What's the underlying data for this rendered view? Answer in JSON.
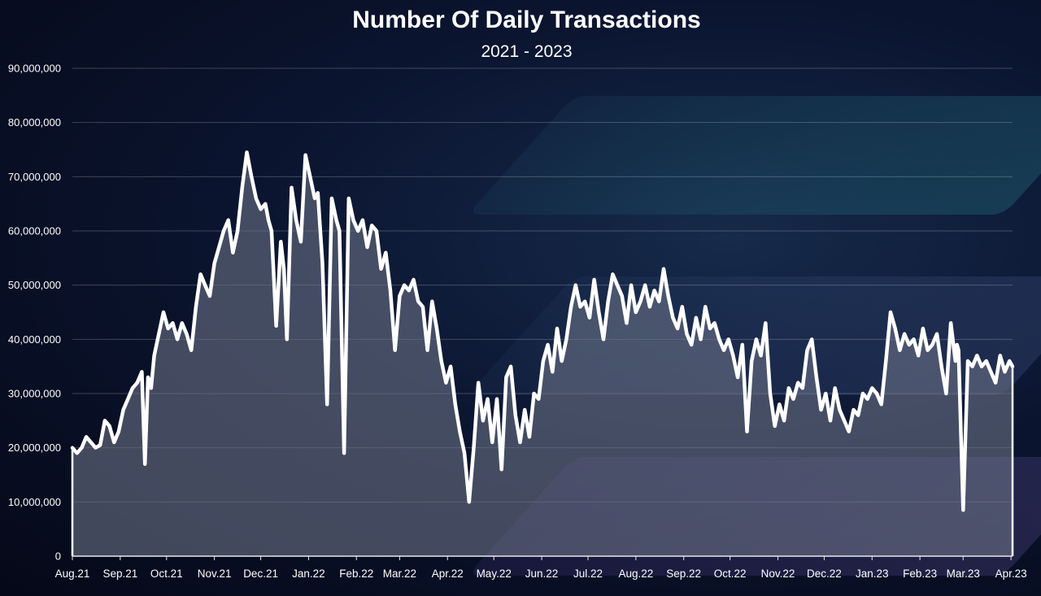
{
  "chart_data": {
    "type": "area",
    "title": "Number Of Daily Transactions",
    "subtitle": "2021 - 2023",
    "xlabel": "",
    "ylabel": "",
    "ylim": [
      0,
      90000000
    ],
    "grid": true,
    "y_ticks": [
      0,
      10000000,
      20000000,
      30000000,
      40000000,
      50000000,
      60000000,
      70000000,
      80000000,
      90000000
    ],
    "y_tick_labels": [
      "0",
      "10,000,000",
      "20,000,000",
      "30,000,000",
      "40,000,000",
      "50,000,000",
      "60,000,000",
      "70,000,000",
      "80,000,000",
      "90,000,000"
    ],
    "x_tick_labels": [
      "Aug.21",
      "Sep.21",
      "Oct.21",
      "Nov.21",
      "Dec.21",
      "Jan.22",
      "Feb.22",
      "Mar.22",
      "Apr.22",
      "May.22",
      "Jun.22",
      "Jul.22",
      "Aug.22",
      "Sep.22",
      "Oct.22",
      "Nov.22",
      "Dec.22",
      "Jan.23",
      "Feb.23",
      "Mar.23",
      "Apr.23"
    ],
    "series": [
      {
        "color": "#ffffff",
        "fill": "#6b7186",
        "x": [
          "2021-08-01",
          "2021-08-04",
          "2021-08-07",
          "2021-08-10",
          "2021-08-13",
          "2021-08-16",
          "2021-08-19",
          "2021-08-22",
          "2021-08-25",
          "2021-08-28",
          "2021-08-31",
          "2021-09-03",
          "2021-09-06",
          "2021-09-09",
          "2021-09-12",
          "2021-09-15",
          "2021-09-17",
          "2021-09-19",
          "2021-09-21",
          "2021-09-23",
          "2021-09-26",
          "2021-09-29",
          "2021-10-02",
          "2021-10-05",
          "2021-10-08",
          "2021-10-11",
          "2021-10-14",
          "2021-10-17",
          "2021-10-20",
          "2021-10-23",
          "2021-10-26",
          "2021-10-29",
          "2021-11-01",
          "2021-11-04",
          "2021-11-07",
          "2021-11-10",
          "2021-11-13",
          "2021-11-16",
          "2021-11-19",
          "2021-11-22",
          "2021-11-25",
          "2021-11-28",
          "2021-12-01",
          "2021-12-04",
          "2021-12-06",
          "2021-12-08",
          "2021-12-11",
          "2021-12-14",
          "2021-12-16",
          "2021-12-18",
          "2021-12-21",
          "2021-12-24",
          "2021-12-27",
          "2021-12-30",
          "2022-01-02",
          "2022-01-05",
          "2022-01-07",
          "2022-01-10",
          "2022-01-13",
          "2022-01-16",
          "2022-01-19",
          "2022-01-21",
          "2022-01-24",
          "2022-01-27",
          "2022-01-30",
          "2022-02-02",
          "2022-02-05",
          "2022-02-08",
          "2022-02-11",
          "2022-02-14",
          "2022-02-17",
          "2022-02-20",
          "2022-02-23",
          "2022-02-26",
          "2022-03-01",
          "2022-03-04",
          "2022-03-07",
          "2022-03-10",
          "2022-03-13",
          "2022-03-16",
          "2022-03-19",
          "2022-03-22",
          "2022-03-25",
          "2022-03-28",
          "2022-03-31",
          "2022-04-03",
          "2022-04-06",
          "2022-04-09",
          "2022-04-12",
          "2022-04-15",
          "2022-04-18",
          "2022-04-21",
          "2022-04-24",
          "2022-04-27",
          "2022-04-30",
          "2022-05-03",
          "2022-05-06",
          "2022-05-09",
          "2022-05-12",
          "2022-05-15",
          "2022-05-18",
          "2022-05-21",
          "2022-05-24",
          "2022-05-27",
          "2022-05-30",
          "2022-06-02",
          "2022-06-05",
          "2022-06-08",
          "2022-06-11",
          "2022-06-14",
          "2022-06-17",
          "2022-06-20",
          "2022-06-23",
          "2022-06-26",
          "2022-06-29",
          "2022-07-02",
          "2022-07-05",
          "2022-07-08",
          "2022-07-11",
          "2022-07-14",
          "2022-07-17",
          "2022-07-20",
          "2022-07-23",
          "2022-07-26",
          "2022-07-29",
          "2022-08-01",
          "2022-08-04",
          "2022-08-07",
          "2022-08-10",
          "2022-08-13",
          "2022-08-16",
          "2022-08-19",
          "2022-08-22",
          "2022-08-25",
          "2022-08-28",
          "2022-08-31",
          "2022-09-03",
          "2022-09-06",
          "2022-09-09",
          "2022-09-12",
          "2022-09-15",
          "2022-09-18",
          "2022-09-21",
          "2022-09-24",
          "2022-09-27",
          "2022-09-30",
          "2022-10-03",
          "2022-10-06",
          "2022-10-09",
          "2022-10-12",
          "2022-10-15",
          "2022-10-18",
          "2022-10-21",
          "2022-10-24",
          "2022-10-27",
          "2022-10-30",
          "2022-11-02",
          "2022-11-05",
          "2022-11-08",
          "2022-11-11",
          "2022-11-14",
          "2022-11-17",
          "2022-11-20",
          "2022-11-23",
          "2022-11-26",
          "2022-11-29",
          "2022-12-02",
          "2022-12-05",
          "2022-12-08",
          "2022-12-11",
          "2022-12-14",
          "2022-12-17",
          "2022-12-20",
          "2022-12-23",
          "2022-12-26",
          "2022-12-29",
          "2023-01-01",
          "2023-01-04",
          "2023-01-07",
          "2023-01-10",
          "2023-01-13",
          "2023-01-16",
          "2023-01-19",
          "2023-01-22",
          "2023-01-25",
          "2023-01-28",
          "2023-01-31",
          "2023-02-03",
          "2023-02-06",
          "2023-02-09",
          "2023-02-12",
          "2023-02-15",
          "2023-02-18",
          "2023-02-21",
          "2023-02-24",
          "2023-02-25",
          "2023-02-26",
          "2023-03-01",
          "2023-03-04",
          "2023-03-07",
          "2023-03-10",
          "2023-03-13",
          "2023-03-16",
          "2023-03-19",
          "2023-03-22",
          "2023-03-25",
          "2023-03-28",
          "2023-03-31",
          "2023-04-02"
        ],
        "values": [
          20000000,
          19000000,
          20000000,
          22000000,
          21000000,
          20000000,
          20500000,
          25000000,
          24000000,
          21000000,
          23000000,
          27000000,
          29000000,
          31000000,
          32000000,
          34000000,
          17000000,
          33000000,
          31000000,
          37000000,
          41000000,
          45000000,
          42000000,
          43000000,
          40000000,
          43000000,
          41000000,
          38000000,
          46000000,
          52000000,
          50000000,
          48000000,
          54000000,
          57000000,
          60000000,
          62000000,
          56000000,
          60000000,
          68000000,
          74500000,
          70000000,
          66000000,
          64000000,
          65000000,
          62000000,
          60000000,
          42500000,
          58000000,
          53000000,
          40000000,
          68000000,
          62000000,
          58000000,
          74000000,
          70000000,
          66000000,
          67000000,
          54000000,
          28000000,
          66000000,
          62000000,
          60000000,
          19000000,
          66000000,
          62000000,
          60000000,
          62000000,
          57000000,
          61000000,
          60000000,
          53000000,
          56000000,
          49000000,
          38000000,
          48000000,
          50000000,
          49000000,
          51000000,
          47000000,
          46000000,
          38000000,
          47000000,
          42000000,
          36000000,
          32000000,
          35000000,
          28000000,
          23000000,
          19000000,
          10000000,
          20000000,
          32000000,
          25000000,
          29000000,
          21000000,
          29000000,
          16000000,
          33000000,
          35000000,
          26000000,
          21000000,
          27000000,
          22000000,
          30000000,
          29000000,
          36000000,
          39000000,
          34000000,
          42000000,
          36000000,
          40000000,
          46000000,
          50000000,
          46000000,
          47000000,
          44000000,
          51000000,
          45000000,
          40000000,
          47000000,
          52000000,
          50000000,
          48000000,
          43000000,
          50000000,
          45000000,
          47000000,
          50000000,
          46000000,
          49000000,
          47000000,
          53000000,
          48000000,
          44000000,
          42000000,
          46000000,
          41000000,
          39000000,
          44000000,
          40000000,
          46000000,
          42000000,
          43000000,
          40000000,
          38000000,
          40000000,
          37000000,
          33000000,
          39000000,
          23000000,
          36000000,
          40000000,
          37000000,
          43000000,
          30000000,
          24000000,
          28000000,
          25000000,
          31000000,
          29000000,
          32000000,
          31000000,
          38000000,
          40000000,
          33000000,
          27000000,
          30000000,
          25000000,
          31000000,
          27000000,
          25000000,
          23000000,
          27000000,
          26000000,
          30000000,
          29000000,
          31000000,
          30000000,
          28000000,
          36000000,
          45000000,
          42000000,
          38000000,
          41000000,
          39000000,
          40000000,
          37000000,
          42000000,
          38000000,
          39000000,
          41000000,
          35000000,
          30000000,
          43000000,
          36000000,
          39000000,
          38000000,
          8500000,
          36000000,
          35000000,
          37000000,
          35000000,
          36000000,
          34000000,
          32000000,
          37000000,
          34000000,
          36000000,
          35000000
        ]
      }
    ]
  }
}
